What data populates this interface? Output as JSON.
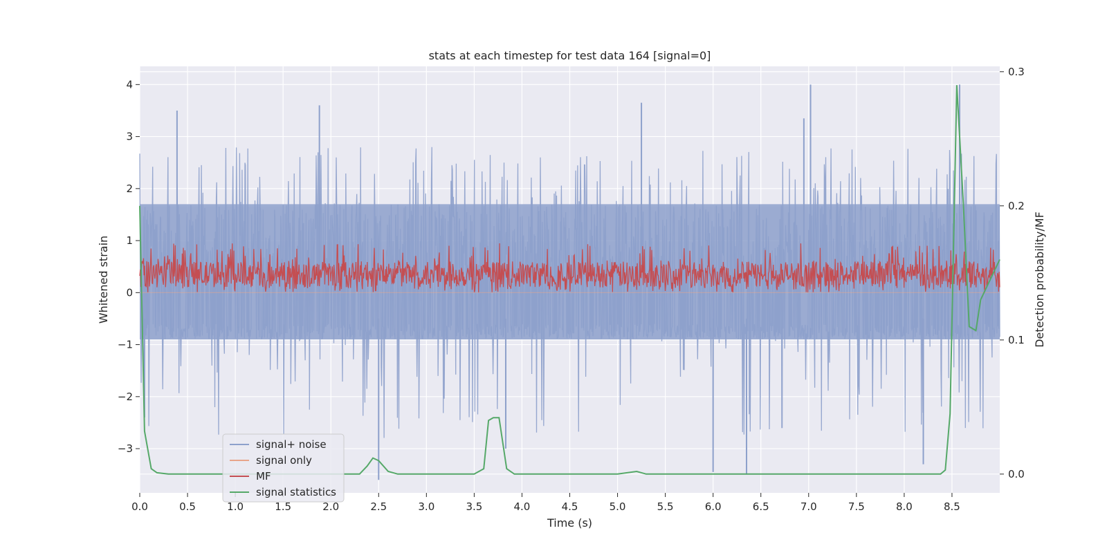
{
  "chart_data": {
    "type": "line",
    "title": "stats at each timestep for test data 164 [signal=0]",
    "xlabel": "Time (s)",
    "ylabel": "Whitened strain",
    "y2label": "Detection probability/MF",
    "xlim": [
      0.0,
      9.0
    ],
    "ylim": [
      -3.85,
      4.35
    ],
    "y2lim": [
      -0.014,
      0.304
    ],
    "x_ticks": [
      "0.0",
      "0.5",
      "1.0",
      "1.5",
      "2.0",
      "2.5",
      "3.0",
      "3.5",
      "4.0",
      "4.5",
      "5.0",
      "5.5",
      "6.0",
      "6.5",
      "7.0",
      "7.5",
      "8.0",
      "8.5"
    ],
    "y_ticks": [
      "4",
      "3",
      "2",
      "1",
      "0",
      "−1",
      "−2",
      "−3"
    ],
    "y2_ticks": [
      "0.3",
      "0.2",
      "0.1",
      "0.0"
    ],
    "grid": true,
    "legend_position": "lower-left",
    "colors": {
      "background": "#eaeaf2",
      "grid": "#ffffff",
      "signal_noise": "#8da0cb",
      "signal_only": "#e8a58a",
      "mf": "#c44e52",
      "signal_statistics": "#55a868"
    },
    "legend": [
      "signal+ noise",
      "signal only",
      "MF",
      "signal statistics"
    ],
    "series": [
      {
        "name": "signal+ noise",
        "axis": "left",
        "note_desc": "dense noisy trace",
        "envelope_upper_typical": 1.7,
        "envelope_lower_typical": -0.9,
        "peaks": [
          [
            0.39,
            3.5
          ],
          [
            1.88,
            3.6
          ],
          [
            5.25,
            3.65
          ],
          [
            6.95,
            3.35
          ],
          [
            7.02,
            4.0
          ],
          [
            8.58,
            4.0
          ]
        ],
        "troughs": [
          [
            0.05,
            -2.4
          ],
          [
            2.5,
            -3.6
          ],
          [
            3.83,
            -3.0
          ],
          [
            6.0,
            -3.45
          ],
          [
            6.35,
            -3.5
          ],
          [
            8.2,
            -3.3
          ]
        ]
      },
      {
        "name": "signal only",
        "axis": "left",
        "values_desc": "flat at zero",
        "x": [
          0.0,
          9.0
        ],
        "y": [
          0.0,
          0.0
        ]
      },
      {
        "name": "MF",
        "axis": "left",
        "range": [
          0.0,
          0.95
        ],
        "typical": [
          0.1,
          0.6
        ]
      },
      {
        "name": "signal statistics",
        "axis": "right",
        "x": [
          0.0,
          0.05,
          0.12,
          0.18,
          0.3,
          0.5,
          0.8,
          1.0,
          1.5,
          2.0,
          2.3,
          2.38,
          2.44,
          2.5,
          2.6,
          2.7,
          3.0,
          3.5,
          3.6,
          3.65,
          3.7,
          3.76,
          3.84,
          3.92,
          4.0,
          4.5,
          5.0,
          5.2,
          5.3,
          5.5,
          6.0,
          7.0,
          8.0,
          8.38,
          8.43,
          8.48,
          8.55,
          8.62,
          8.68,
          8.75,
          8.8,
          8.9,
          9.0
        ],
        "y": [
          0.2,
          0.032,
          0.004,
          0.001,
          0.0,
          0.0,
          0.0,
          0.0,
          0.0,
          0.0,
          0.0,
          0.006,
          0.012,
          0.01,
          0.002,
          0.0,
          0.0,
          0.0,
          0.004,
          0.04,
          0.042,
          0.042,
          0.004,
          0.0,
          0.0,
          0.0,
          0.0,
          0.002,
          0.0,
          0.0,
          0.0,
          0.0,
          0.0,
          0.0,
          0.003,
          0.045,
          0.29,
          0.2,
          0.11,
          0.107,
          0.13,
          0.145,
          0.16
        ]
      }
    ]
  }
}
